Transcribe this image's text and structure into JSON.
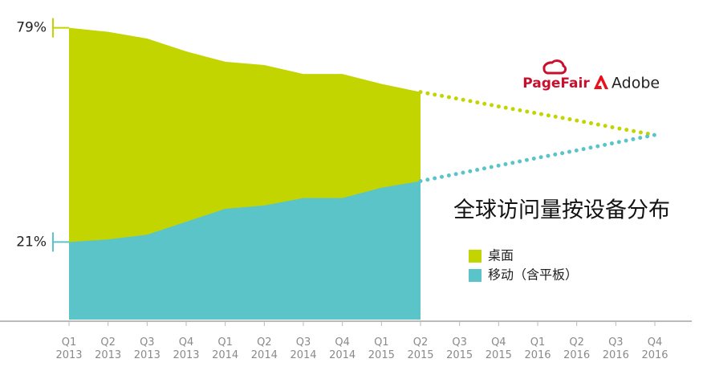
{
  "chart_data": {
    "type": "area",
    "title": "全球访问量按设备分布",
    "logos": [
      "PageFair",
      "Adobe"
    ],
    "categories": [
      "Q1 2013",
      "Q2 2013",
      "Q3 2013",
      "Q4 2013",
      "Q1 2014",
      "Q2 2014",
      "Q3 2014",
      "Q4 2014",
      "Q1 2015",
      "Q2 2015",
      "Q3 2015",
      "Q4 2015",
      "Q1 2016",
      "Q2 2016",
      "Q3 2016",
      "Q4 2016"
    ],
    "series": [
      {
        "name": "桌面",
        "color": "#c2d500",
        "values": [
          79,
          77.9,
          76.1,
          72.6,
          69.8,
          68.9,
          66.5,
          66.5,
          63.8,
          61.6,
          59.7,
          57.7,
          55.8,
          53.9,
          51.9,
          50
        ]
      },
      {
        "name": "移动（含平板）",
        "color": "#5bc4c9",
        "values": [
          21,
          21.7,
          23,
          26.5,
          30,
          30.9,
          32.9,
          32.9,
          35.7,
          37.5,
          39.6,
          41.7,
          43.8,
          45.8,
          47.9,
          50
        ]
      }
    ],
    "forecast_from_index": 9,
    "ylim": [
      0,
      80
    ],
    "yticks": [
      {
        "value": 79,
        "label": "79%"
      },
      {
        "value": 21,
        "label": "21%"
      }
    ],
    "legend": "center-right"
  }
}
